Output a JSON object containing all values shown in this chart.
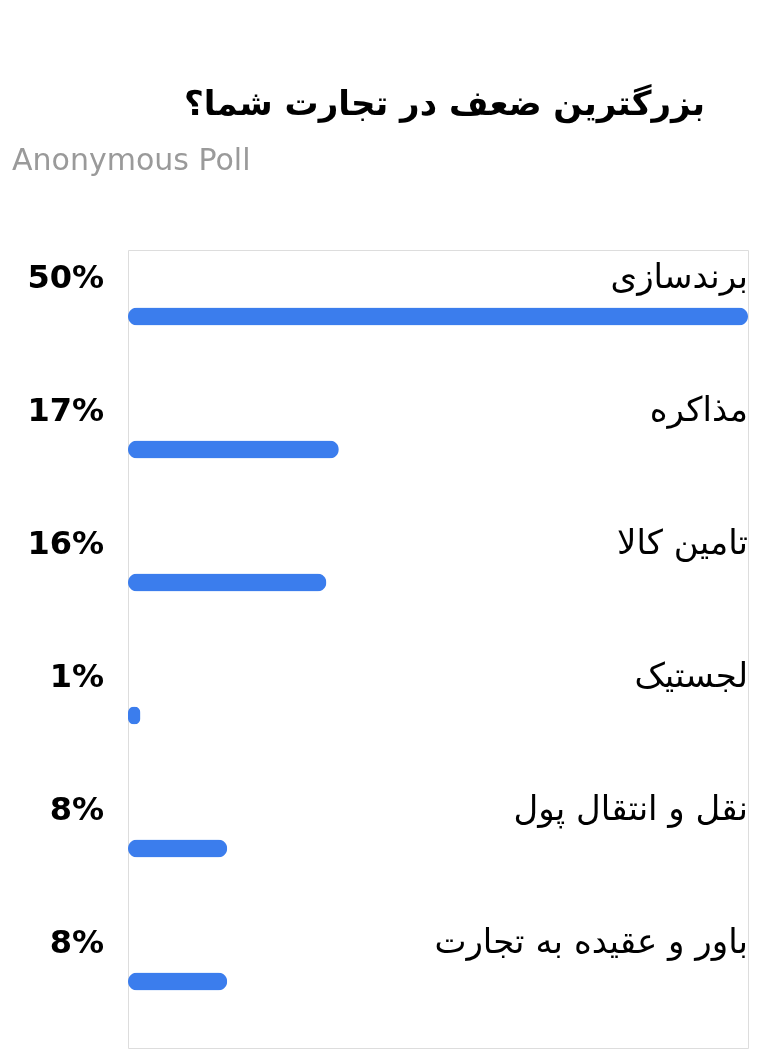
{
  "chart_data": {
    "type": "bar",
    "orientation": "horizontal",
    "title": "بزرگترین ضعف در تجارت شما؟",
    "subtitle": "Anonymous Poll",
    "categories": [
      "برندسازی",
      "مذاکره",
      "تامین کالا",
      "لجستیک",
      "نقل و انتقال پول",
      "باور و عقیده به تجارت"
    ],
    "values": [
      50,
      17,
      16,
      1,
      8,
      8
    ],
    "value_labels": [
      "50%",
      "17%",
      "16%",
      "1%",
      "8%",
      "8%"
    ],
    "color": "#3b7ded"
  }
}
